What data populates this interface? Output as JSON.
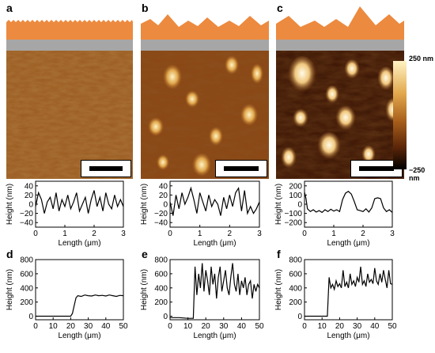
{
  "panels": {
    "a": "a",
    "b": "b",
    "c": "c",
    "d": "d",
    "e": "e",
    "f": "f"
  },
  "colorbar": {
    "max_label": "250 nm",
    "min_label": "−250 nm"
  },
  "colors": {
    "film": "#ec8a3f",
    "substrate": "#a6a6a6"
  },
  "chart_data": [
    {
      "type": "line",
      "panel": "a",
      "xlabel": "Length (μm)",
      "ylabel": "Height (nm)",
      "xlim": [
        0,
        3
      ],
      "ylim": [
        -50,
        50
      ],
      "xticks": [
        0,
        1,
        2,
        3
      ],
      "yticks": [
        40,
        20,
        0,
        -20,
        -40
      ],
      "series": [
        {
          "x": [
            0,
            0.1,
            0.2,
            0.3,
            0.4,
            0.5,
            0.6,
            0.7,
            0.8,
            0.9,
            1.0,
            1.1,
            1.2,
            1.3,
            1.4,
            1.5,
            1.6,
            1.7,
            1.8,
            1.9,
            2.0,
            2.1,
            2.2,
            2.3,
            2.4,
            2.5,
            2.6,
            2.7,
            2.8,
            2.9,
            3.0
          ],
          "y": [
            -5,
            25,
            10,
            -20,
            5,
            15,
            -10,
            25,
            -15,
            10,
            -5,
            20,
            -10,
            5,
            25,
            -15,
            0,
            15,
            -20,
            10,
            30,
            -5,
            15,
            -15,
            25,
            0,
            -10,
            20,
            -5,
            10,
            -5
          ]
        }
      ]
    },
    {
      "type": "line",
      "panel": "b",
      "xlabel": "Length (μm)",
      "ylabel": "Height (nm)",
      "xlim": [
        0,
        3
      ],
      "ylim": [
        -50,
        50
      ],
      "xticks": [
        0,
        1,
        2,
        3
      ],
      "yticks": [
        40,
        20,
        0,
        -20,
        -40
      ],
      "series": [
        {
          "x": [
            0,
            0.1,
            0.2,
            0.3,
            0.4,
            0.5,
            0.6,
            0.7,
            0.8,
            0.9,
            1.0,
            1.1,
            1.2,
            1.3,
            1.4,
            1.5,
            1.6,
            1.7,
            1.8,
            1.9,
            2.0,
            2.1,
            2.2,
            2.3,
            2.4,
            2.5,
            2.6,
            2.7,
            2.8,
            2.9,
            3.0
          ],
          "y": [
            5,
            -25,
            20,
            -10,
            25,
            0,
            15,
            35,
            10,
            -20,
            25,
            5,
            -15,
            20,
            -5,
            10,
            0,
            -25,
            15,
            -10,
            20,
            -5,
            25,
            35,
            -15,
            30,
            -20,
            -5,
            -20,
            -10,
            5
          ]
        }
      ]
    },
    {
      "type": "line",
      "panel": "c",
      "xlabel": "Length (μm)",
      "ylabel": "Height (nm)",
      "xlim": [
        0,
        3
      ],
      "ylim": [
        -250,
        250
      ],
      "xticks": [
        0,
        1,
        2,
        3
      ],
      "yticks": [
        200,
        100,
        0,
        -100,
        -200
      ],
      "series": [
        {
          "x": [
            0,
            0.05,
            0.1,
            0.2,
            0.3,
            0.4,
            0.5,
            0.6,
            0.7,
            0.8,
            0.9,
            1.0,
            1.1,
            1.2,
            1.3,
            1.4,
            1.5,
            1.6,
            1.7,
            1.8,
            1.9,
            2.0,
            2.1,
            2.2,
            2.3,
            2.4,
            2.5,
            2.6,
            2.7,
            2.8,
            2.9,
            3.0
          ],
          "y": [
            130,
            60,
            -50,
            -80,
            -60,
            -85,
            -70,
            -90,
            -60,
            -80,
            -55,
            -75,
            -60,
            -80,
            50,
            120,
            140,
            110,
            30,
            -60,
            -70,
            -80,
            -50,
            -85,
            -40,
            60,
            70,
            60,
            -40,
            -80,
            -60,
            -90
          ]
        }
      ]
    },
    {
      "type": "line",
      "panel": "d",
      "xlabel": "Length (μm)",
      "ylabel": "Height (nm)",
      "xlim": [
        0,
        50
      ],
      "ylim": [
        -50,
        800
      ],
      "xticks": [
        0,
        10,
        20,
        30,
        40,
        50
      ],
      "yticks": [
        0,
        200,
        400,
        600,
        800
      ],
      "series": [
        {
          "x": [
            0,
            10,
            20,
            21,
            22,
            23,
            24,
            26,
            28,
            30,
            32,
            34,
            36,
            38,
            40,
            42,
            44,
            46,
            48,
            50
          ],
          "y": [
            0,
            0,
            0,
            40,
            150,
            260,
            290,
            280,
            300,
            290,
            285,
            300,
            290,
            295,
            285,
            300,
            290,
            280,
            295,
            290
          ]
        }
      ]
    },
    {
      "type": "line",
      "panel": "e",
      "xlabel": "Length (μm)",
      "ylabel": "Height (nm)",
      "xlim": [
        0,
        50
      ],
      "ylim": [
        -50,
        800
      ],
      "xticks": [
        0,
        10,
        20,
        30,
        40,
        50
      ],
      "yticks": [
        0,
        200,
        400,
        600,
        800
      ],
      "series": [
        {
          "x": [
            0,
            5,
            10,
            13,
            14,
            15,
            16,
            17,
            18,
            19,
            20,
            21,
            22,
            23,
            24,
            25,
            26,
            27,
            28,
            29,
            30,
            31,
            32,
            33,
            34,
            35,
            36,
            37,
            38,
            39,
            40,
            41,
            42,
            43,
            44,
            45,
            46,
            47,
            48,
            49,
            50
          ],
          "y": [
            -20,
            -20,
            -30,
            -30,
            700,
            300,
            600,
            400,
            750,
            350,
            650,
            500,
            300,
            700,
            450,
            600,
            250,
            550,
            700,
            350,
            500,
            650,
            400,
            300,
            550,
            750,
            450,
            350,
            600,
            300,
            500,
            400,
            550,
            300,
            450,
            500,
            250,
            450,
            350,
            450,
            400
          ]
        }
      ]
    },
    {
      "type": "line",
      "panel": "f",
      "xlabel": "Length (μm)",
      "ylabel": "Height (nm)",
      "xlim": [
        0,
        50
      ],
      "ylim": [
        -50,
        800
      ],
      "xticks": [
        0,
        10,
        20,
        30,
        40,
        50
      ],
      "yticks": [
        0,
        200,
        400,
        600,
        800
      ],
      "series": [
        {
          "x": [
            0,
            5,
            10,
            13,
            14,
            15,
            16,
            17,
            18,
            19,
            20,
            21,
            22,
            23,
            24,
            25,
            26,
            27,
            28,
            29,
            30,
            31,
            32,
            33,
            34,
            35,
            36,
            37,
            38,
            39,
            40,
            41,
            42,
            43,
            44,
            45,
            46,
            47,
            48,
            49,
            50
          ],
          "y": [
            0,
            0,
            0,
            0,
            550,
            400,
            450,
            380,
            500,
            420,
            460,
            400,
            650,
            420,
            480,
            400,
            600,
            450,
            500,
            420,
            550,
            480,
            700,
            450,
            500,
            420,
            600,
            480,
            520,
            460,
            680,
            500,
            450,
            600,
            480,
            650,
            520,
            400,
            650,
            460,
            450
          ]
        }
      ]
    }
  ]
}
